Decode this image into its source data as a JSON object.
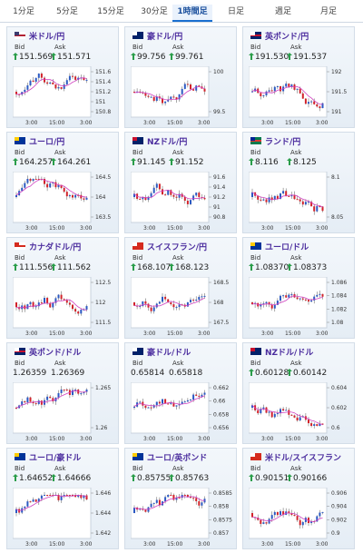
{
  "tabs": [
    "1分足",
    "5分足",
    "15分足",
    "30分足",
    "1時間足",
    "日足",
    "週足",
    "月足"
  ],
  "selected_tab": 4,
  "tiles": [
    {
      "name": "米ドル/円",
      "bid_label": "Bid",
      "ask_label": "Ask",
      "bid": "151.569",
      "ask": "151.571",
      "arrow": true,
      "flag": "us",
      "ticks": [
        "151.6",
        "151.4",
        "151.2",
        "151",
        "150.8"
      ],
      "x_labels": [
        "3:00",
        "15:00",
        "3:00"
      ]
    },
    {
      "name": "豪ドル/円",
      "bid_label": "Bid",
      "ask_label": "Ask",
      "bid": "99.756",
      "ask": "99.761",
      "arrow": true,
      "flag": "au",
      "ticks": [
        "100",
        "99.5"
      ],
      "x_labels": [
        "3:00",
        "15:00",
        "3:00"
      ]
    },
    {
      "name": "英ポンド/円",
      "bid_label": "Bid",
      "ask_label": "Ask",
      "bid": "191.530",
      "ask": "191.537",
      "arrow": true,
      "flag": "uk",
      "ticks": [
        "192",
        "191.5",
        "191"
      ],
      "x_labels": [
        "3:00",
        "15:00",
        "3:00"
      ]
    },
    {
      "name": "ユーロ/円",
      "bid_label": "Bid",
      "ask_label": "Ask",
      "bid": "164.257",
      "ask": "164.261",
      "arrow": true,
      "flag": "eu",
      "ticks": [
        "164.5",
        "164",
        "163.5"
      ],
      "x_labels": [
        "3:00",
        "15:00",
        "3:00"
      ]
    },
    {
      "name": "NZドル/円",
      "bid_label": "Bid",
      "ask_label": "Ask",
      "bid": "91.145",
      "ask": "91.152",
      "arrow": true,
      "flag": "nz",
      "ticks": [
        "91.6",
        "91.4",
        "91.2",
        "91",
        "90.8"
      ],
      "x_labels": [
        "3:00",
        "15:00",
        "3:00"
      ]
    },
    {
      "name": "ランド/円",
      "bid_label": "Bid",
      "ask_label": "Ask",
      "bid": "8.116",
      "ask": "8.125",
      "arrow": true,
      "flag": "za",
      "ticks": [
        "8.1",
        "8.05"
      ],
      "x_labels": [
        "3:00",
        "15:00",
        "3:00"
      ]
    },
    {
      "name": "カナダドル/円",
      "bid_label": "Bid",
      "ask_label": "Ask",
      "bid": "111.556",
      "ask": "111.562",
      "arrow": true,
      "flag": "ca",
      "ticks": [
        "112.5",
        "112",
        "111.5"
      ],
      "x_labels": [
        "3:00",
        "15:00",
        "3:00"
      ]
    },
    {
      "name": "スイスフラン/円",
      "bid_label": "Bid",
      "ask_label": "Ask",
      "bid": "168.107",
      "ask": "168.123",
      "arrow": true,
      "flag": "ch",
      "ticks": [
        "168.5",
        "168",
        "167.5"
      ],
      "x_labels": [
        "3:00",
        "15:00",
        "3:00"
      ]
    },
    {
      "name": "ユーロ/ドル",
      "bid_label": "Bid",
      "ask_label": "Ask",
      "bid": "1.08370",
      "ask": "1.08373",
      "arrow": true,
      "flag": "eu",
      "ticks": [
        "1.086",
        "1.084",
        "1.082",
        "1.08"
      ],
      "x_labels": [
        "3:00",
        "15:00",
        "3:00"
      ]
    },
    {
      "name": "英ポンド/ドル",
      "bid_label": "Bid",
      "ask_label": "Ask",
      "bid": "1.26359",
      "ask": "1.26369",
      "arrow": false,
      "flag": "uk",
      "ticks": [
        "1.265",
        "1.26"
      ],
      "x_labels": [
        "3:00",
        "15:00",
        "3:00"
      ]
    },
    {
      "name": "豪ドル/ドル",
      "bid_label": "Bid",
      "ask_label": "Ask",
      "bid": "0.65814",
      "ask": "0.65818",
      "arrow": false,
      "flag": "au",
      "ticks": [
        "0.662",
        "0.66",
        "0.658",
        "0.656"
      ],
      "x_labels": [
        "3:00",
        "15:00",
        "3:00"
      ]
    },
    {
      "name": "NZドル/ドル",
      "bid_label": "Bid",
      "ask_label": "Ask",
      "bid": "0.60128",
      "ask": "0.60142",
      "arrow": true,
      "flag": "nz",
      "ticks": [
        "0.604",
        "0.602",
        "0.6"
      ],
      "x_labels": [
        "3:00",
        "15:00",
        "3:00"
      ]
    },
    {
      "name": "ユーロ/豪ドル",
      "bid_label": "Bid",
      "ask_label": "Ask",
      "bid": "1.64652",
      "ask": "1.64666",
      "arrow": true,
      "flag": "eu",
      "ticks": [
        "1.646",
        "1.644",
        "1.642"
      ],
      "x_labels": [
        "3:00",
        "15:00",
        "3:00"
      ]
    },
    {
      "name": "ユーロ/英ポンド",
      "bid_label": "Bid",
      "ask_label": "Ask",
      "bid": "0.85755",
      "ask": "0.85763",
      "arrow": true,
      "flag": "eu",
      "ticks": [
        "0.8585",
        "0.858",
        "0.8575",
        "0.857"
      ],
      "x_labels": [
        "3:00",
        "15:00",
        "3:00"
      ]
    },
    {
      "name": "米ドル/スイスフラン",
      "bid_label": "Bid",
      "ask_label": "Ask",
      "bid": "0.90151",
      "ask": "0.90166",
      "arrow": true,
      "flag": "ch",
      "ticks": [
        "0.906",
        "0.904",
        "0.902",
        "0.9"
      ],
      "x_labels": [
        "3:00",
        "15:00",
        "3:00"
      ]
    }
  ]
}
